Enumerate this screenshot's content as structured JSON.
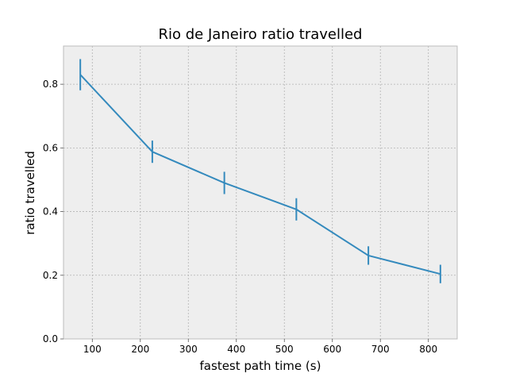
{
  "chart_data": {
    "type": "line",
    "title": "Rio de Janeiro ratio travelled",
    "xlabel": "fastest path time (s)",
    "ylabel": "ratio travelled",
    "xlim": [
      40,
      860
    ],
    "ylim": [
      0,
      0.92
    ],
    "xticks": [
      100,
      200,
      300,
      400,
      500,
      600,
      700,
      800
    ],
    "yticks": [
      0.0,
      0.2,
      0.4,
      0.6,
      0.8
    ],
    "ytick_labels": [
      "0.0",
      "0.2",
      "0.4",
      "0.6",
      "0.8"
    ],
    "grid": true,
    "series": [
      {
        "x": [
          75,
          225,
          375,
          525,
          675,
          825
        ],
        "y": [
          0.83,
          0.588,
          0.49,
          0.407,
          0.262,
          0.204
        ],
        "yerr": [
          0.049,
          0.035,
          0.035,
          0.035,
          0.029,
          0.029
        ],
        "color": "#348abd"
      }
    ],
    "background": "#eeeeee",
    "grid_color": "#b2b2b2"
  }
}
